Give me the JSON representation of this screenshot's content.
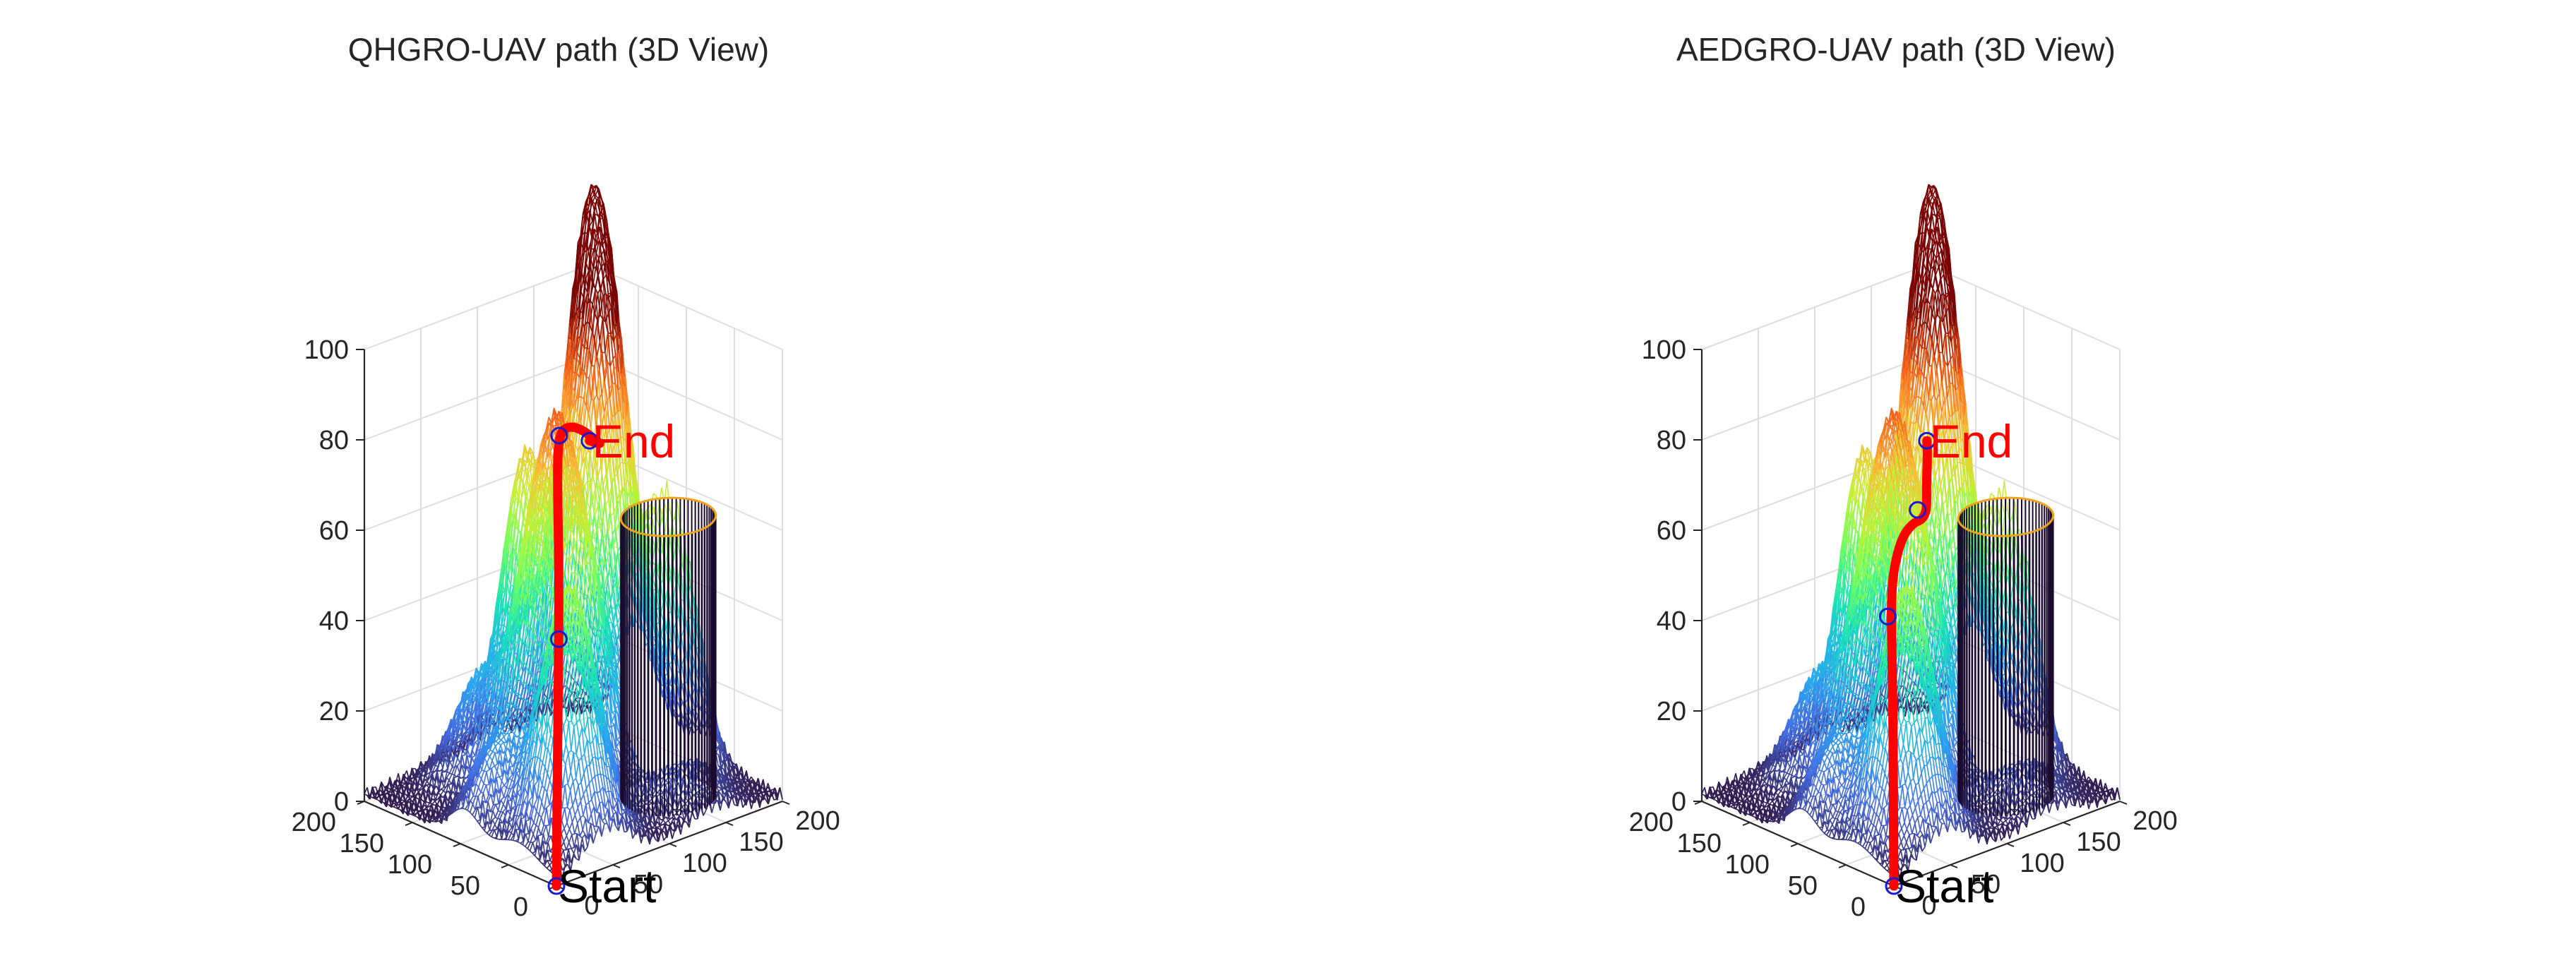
{
  "chart_data": [
    {
      "type": "surface",
      "title": "QHGRO-UAV path (3D View)",
      "xlabel": "",
      "ylabel": "",
      "zlabel": "",
      "xlim": [
        0,
        200
      ],
      "ylim": [
        0,
        200
      ],
      "zlim": [
        0,
        100
      ],
      "x_ticks": [
        "0",
        "50",
        "100",
        "150",
        "200"
      ],
      "y_ticks": [
        "0",
        "50",
        "100",
        "150",
        "200"
      ],
      "z_ticks": [
        "0",
        "20",
        "40",
        "60",
        "80",
        "100"
      ],
      "grid": true,
      "colormap": "turbo",
      "start_label": "Start",
      "end_label": "End",
      "path_color": "#ff0000",
      "waypoint_color": "#1a1ad0",
      "start": [
        0,
        0,
        0
      ],
      "end": [
        195,
        195,
        62
      ],
      "path": [
        [
          0,
          0,
          0
        ],
        [
          4,
          4,
          18
        ],
        [
          9,
          9,
          38
        ],
        [
          14,
          14,
          55
        ],
        [
          19,
          20,
          70
        ],
        [
          24,
          27,
          82
        ],
        [
          30,
          34,
          89
        ],
        [
          38,
          42,
          91
        ],
        [
          52,
          55,
          91
        ],
        [
          75,
          72,
          88
        ],
        [
          105,
          95,
          82
        ],
        [
          140,
          125,
          74
        ],
        [
          172,
          155,
          67
        ],
        [
          195,
          195,
          62
        ]
      ],
      "waypoints": [
        [
          14,
          14,
          52
        ],
        [
          39,
          43,
          92
        ]
      ]
    },
    {
      "type": "surface",
      "title": "AEDGRO-UAV path (3D View)",
      "xlabel": "",
      "ylabel": "",
      "zlabel": "",
      "xlim": [
        0,
        200
      ],
      "ylim": [
        0,
        200
      ],
      "zlim": [
        0,
        100
      ],
      "x_ticks": [
        "0",
        "50",
        "100",
        "150",
        "200"
      ],
      "y_ticks": [
        "0",
        "50",
        "100",
        "150",
        "200"
      ],
      "z_ticks": [
        "0",
        "20",
        "40",
        "60",
        "80",
        "100"
      ],
      "grid": true,
      "colormap": "turbo",
      "start_label": "Start",
      "end_label": "End",
      "path_color": "#ff0000",
      "waypoint_color": "#1a1ad0",
      "start": [
        0,
        0,
        0
      ],
      "end": [
        195,
        195,
        62
      ],
      "path": [
        [
          0,
          0,
          0
        ],
        [
          3,
          4,
          15
        ],
        [
          7,
          9,
          32
        ],
        [
          12,
          16,
          48
        ],
        [
          18,
          24,
          58
        ],
        [
          28,
          34,
          63
        ],
        [
          45,
          48,
          66
        ],
        [
          65,
          65,
          66
        ],
        [
          90,
          85,
          64
        ],
        [
          115,
          108,
          60
        ],
        [
          135,
          128,
          57
        ],
        [
          155,
          148,
          55
        ],
        [
          175,
          172,
          56
        ],
        [
          187,
          185,
          60
        ],
        [
          195,
          195,
          62
        ]
      ],
      "waypoints": [
        [
          15,
          24,
          56
        ],
        [
          140,
          140,
          57
        ]
      ]
    }
  ]
}
